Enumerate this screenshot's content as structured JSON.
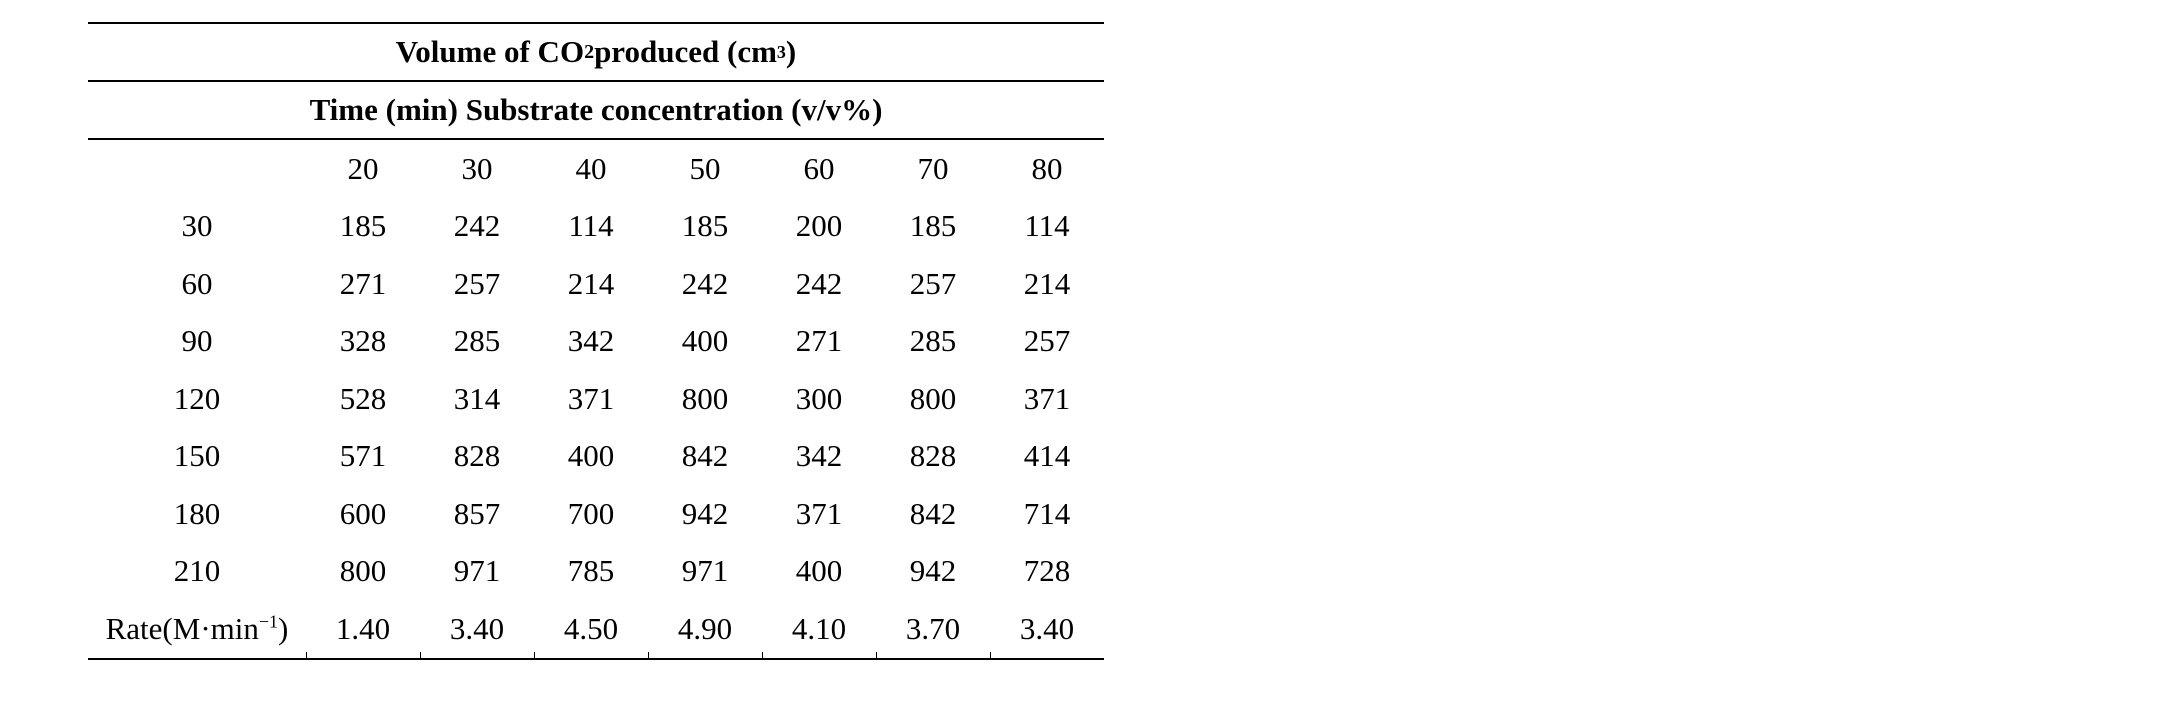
{
  "table": {
    "title_prefix": "Volume of CO",
    "title_sub": "2",
    "title_mid": " produced (cm",
    "title_sup": "3",
    "title_suffix": ")",
    "subheader": "Time (min) Substrate concentration (v/v%)",
    "column_headers": [
      "",
      "20",
      "30",
      "40",
      "50",
      "60",
      "70",
      "80"
    ],
    "rows": [
      [
        "30",
        "185",
        "242",
        "114",
        "185",
        "200",
        "185",
        "114"
      ],
      [
        "60",
        "271",
        "257",
        "214",
        "242",
        "242",
        "257",
        "214"
      ],
      [
        "90",
        "328",
        "285",
        "342",
        "400",
        "271",
        "285",
        "257"
      ],
      [
        "120",
        "528",
        "314",
        "371",
        "800",
        "300",
        "800",
        "371"
      ],
      [
        "150",
        "571",
        "828",
        "400",
        "842",
        "342",
        "828",
        "414"
      ],
      [
        "180",
        "600",
        "857",
        "700",
        "942",
        "371",
        "842",
        "714"
      ],
      [
        "210",
        "800",
        "971",
        "785",
        "971",
        "400",
        "942",
        "728"
      ]
    ],
    "rate_row": {
      "label_prefix": "Rate(M·min",
      "label_sup": "−1",
      "label_suffix": ")",
      "values": [
        "1.40",
        "3.40",
        "4.50",
        "4.90",
        "4.10",
        "3.70",
        "3.40"
      ]
    }
  }
}
